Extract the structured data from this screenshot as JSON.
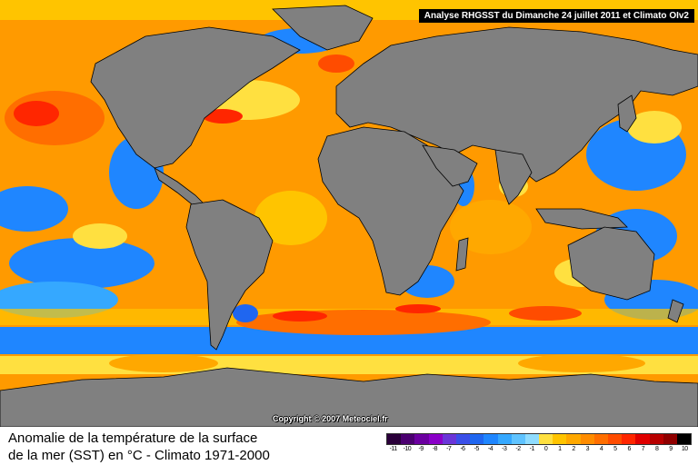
{
  "map": {
    "banner": "Analyse RHGSST  du Dimanche 24 juillet 2011 et Climato OIv2",
    "copyright": "Copyright © 2007 Meteociel.fr"
  },
  "footer": {
    "title_line1": "Anomalie de la température de la surface",
    "title_line2": "de la mer (SST) en °C - Climato 1971-2000"
  },
  "legend": {
    "colors": [
      "#2a003a",
      "#4b0070",
      "#6b00a0",
      "#8a00c8",
      "#6a35d8",
      "#3a4fe8",
      "#1f66f0",
      "#1f86ff",
      "#35a8ff",
      "#5fc3ff",
      "#8fdcff",
      "#ffe040",
      "#ffc400",
      "#ffa800",
      "#ff8c00",
      "#ff6e00",
      "#ff4c00",
      "#ff2600",
      "#e00000",
      "#b80000",
      "#900000",
      "#000000"
    ],
    "labels": [
      "-11",
      "-10",
      "-9",
      "-8",
      "-7",
      "-6",
      "-5",
      "-4",
      "-3",
      "-2",
      "-1",
      "0",
      "1",
      "2",
      "3",
      "4",
      "5",
      "6",
      "7",
      "8",
      "9",
      "10"
    ]
  },
  "palette": {
    "land": "#808080",
    "border": "#000000",
    "ocean_warm": "#ff9a00",
    "ocean_cool": "#1f86ff",
    "ocean_cold": "#1f66f0",
    "ocean_near": "#ffe040",
    "hot": "#ff2600"
  }
}
